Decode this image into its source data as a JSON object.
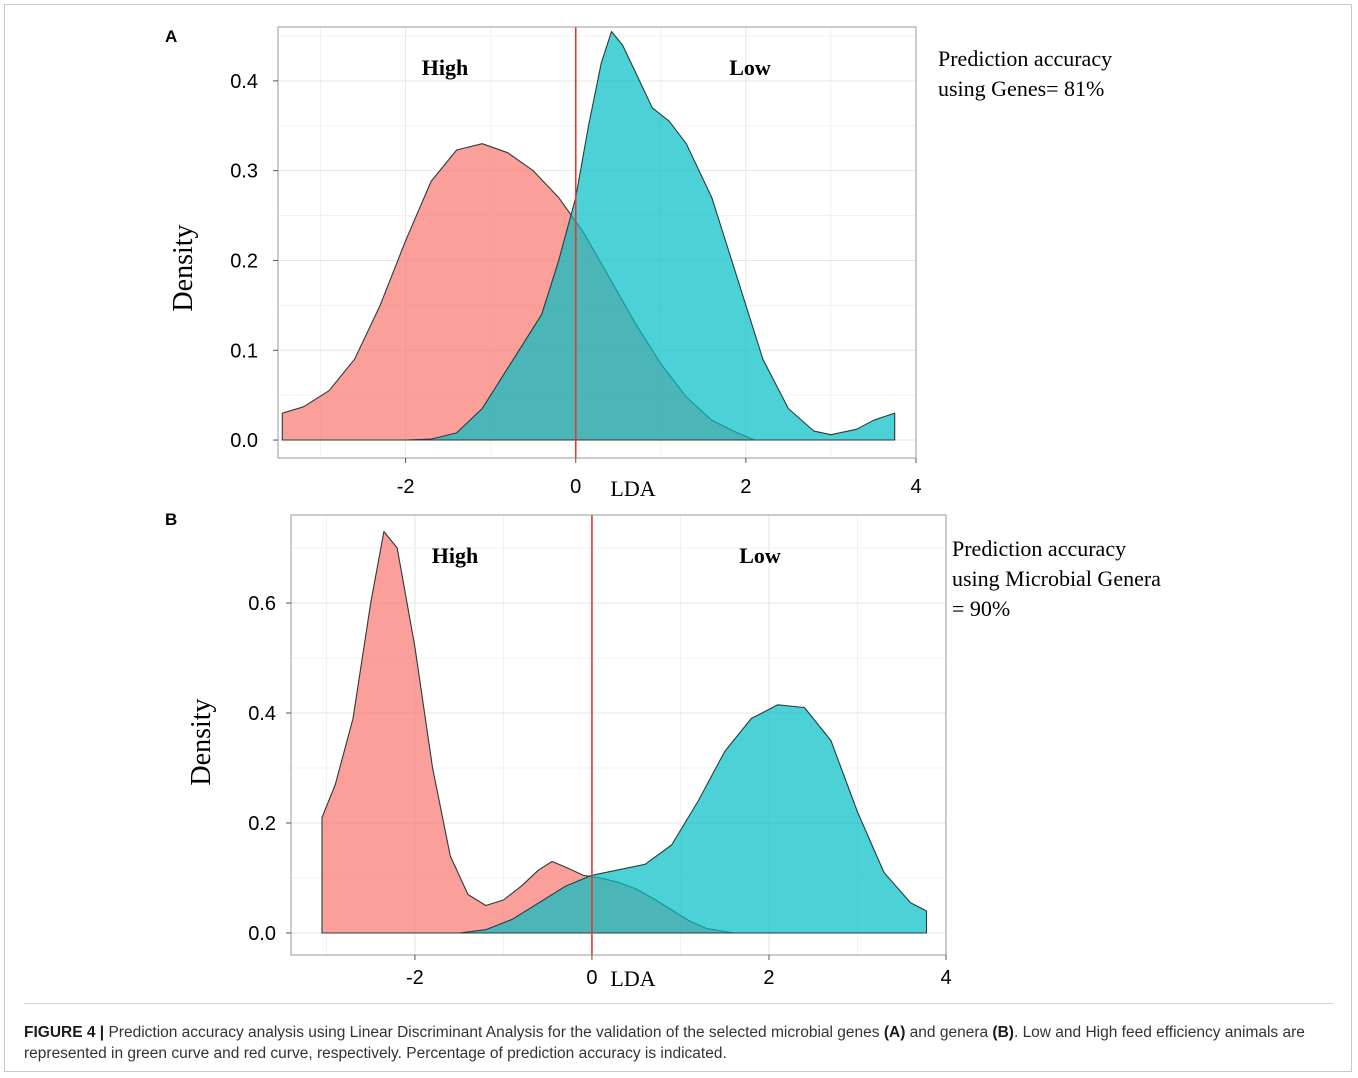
{
  "chart_data": [
    {
      "panel": "A",
      "type": "area",
      "ylabel": "Density",
      "xlabel": "LDA",
      "xlim": [
        -3.5,
        4.0
      ],
      "ylim": [
        -0.02,
        0.46
      ],
      "xticks": [
        -2,
        0,
        2,
        4
      ],
      "yticks": [
        0.0,
        0.1,
        0.2,
        0.3,
        0.4
      ],
      "xtick_labels": [
        "-2",
        "0",
        "2",
        "4"
      ],
      "ytick_labels": [
        "0.0",
        "0.1",
        "0.2",
        "0.3",
        "0.4"
      ],
      "grid": true,
      "vline_x": 0,
      "group_labels": {
        "left": "High",
        "right": "Low"
      },
      "annotation": [
        "Prediction accuracy",
        "using Genes= 81%"
      ],
      "series": [
        {
          "color": "#f8766d",
          "x": [
            -3.45,
            -3.2,
            -2.9,
            -2.6,
            -2.3,
            -2.0,
            -1.7,
            -1.4,
            -1.1,
            -0.8,
            -0.5,
            -0.2,
            0.1,
            0.4,
            0.7,
            1.0,
            1.3,
            1.6,
            1.9,
            2.1
          ],
          "y": [
            0.03,
            0.037,
            0.055,
            0.09,
            0.15,
            0.222,
            0.288,
            0.323,
            0.33,
            0.32,
            0.3,
            0.27,
            0.23,
            0.18,
            0.13,
            0.085,
            0.048,
            0.022,
            0.008,
            0.0
          ]
        },
        {
          "color": "#00bfc4",
          "x": [
            -2.0,
            -1.7,
            -1.4,
            -1.1,
            -0.8,
            -0.6,
            -0.4,
            -0.2,
            0.0,
            0.15,
            0.3,
            0.42,
            0.55,
            0.7,
            0.9,
            1.1,
            1.3,
            1.6,
            1.9,
            2.2,
            2.5,
            2.8,
            3.0,
            3.3,
            3.5,
            3.75,
            3.75
          ],
          "y": [
            0.0,
            0.001,
            0.008,
            0.035,
            0.08,
            0.11,
            0.14,
            0.2,
            0.27,
            0.35,
            0.42,
            0.455,
            0.44,
            0.41,
            0.37,
            0.355,
            0.33,
            0.27,
            0.18,
            0.09,
            0.035,
            0.01,
            0.006,
            0.012,
            0.022,
            0.03,
            0.0
          ]
        }
      ]
    },
    {
      "panel": "B",
      "type": "area",
      "ylabel": "Density",
      "xlabel": "LDA",
      "xlim": [
        -3.4,
        4.0
      ],
      "ylim": [
        -0.04,
        0.76
      ],
      "xticks": [
        -2,
        0,
        2,
        4
      ],
      "yticks": [
        0.0,
        0.2,
        0.4,
        0.6
      ],
      "xtick_labels": [
        "-2",
        "0",
        "2",
        "4"
      ],
      "ytick_labels": [
        "0.0",
        "0.2",
        "0.4",
        "0.6"
      ],
      "grid": true,
      "vline_x": 0,
      "group_labels": {
        "left": "High",
        "right": "Low"
      },
      "annotation": [
        "Prediction accuracy",
        "using Microbial Genera",
        "= 90%"
      ],
      "series": [
        {
          "color": "#f8766d",
          "x": [
            -3.05,
            -3.05,
            -2.9,
            -2.7,
            -2.5,
            -2.35,
            -2.2,
            -2.0,
            -1.8,
            -1.6,
            -1.4,
            -1.2,
            -1.0,
            -0.8,
            -0.6,
            -0.45,
            -0.3,
            -0.1,
            0.1,
            0.3,
            0.5,
            0.7,
            0.9,
            1.1,
            1.3,
            1.6
          ],
          "y": [
            0.0,
            0.21,
            0.27,
            0.39,
            0.6,
            0.73,
            0.7,
            0.52,
            0.3,
            0.14,
            0.07,
            0.05,
            0.06,
            0.085,
            0.115,
            0.13,
            0.12,
            0.105,
            0.1,
            0.092,
            0.08,
            0.062,
            0.042,
            0.022,
            0.008,
            0.0
          ]
        },
        {
          "color": "#00bfc4",
          "x": [
            -1.5,
            -1.2,
            -0.9,
            -0.6,
            -0.3,
            0.0,
            0.3,
            0.6,
            0.9,
            1.2,
            1.5,
            1.8,
            2.1,
            2.4,
            2.7,
            3.0,
            3.3,
            3.6,
            3.78,
            3.78
          ],
          "y": [
            0.0,
            0.006,
            0.025,
            0.055,
            0.085,
            0.105,
            0.115,
            0.125,
            0.16,
            0.24,
            0.33,
            0.39,
            0.415,
            0.41,
            0.35,
            0.22,
            0.11,
            0.055,
            0.04,
            0.0
          ]
        }
      ]
    }
  ],
  "caption": {
    "label": "FIGURE 4 |",
    "text_1": " Prediction accuracy analysis using Linear Discriminant Analysis for the validation of the selected microbial genes ",
    "ref_a": "(A)",
    "text_2": " and genera ",
    "ref_b": "(B)",
    "text_3": ". Low and High feed efficiency animals are represented in green curve and red curve, respectively. Percentage of prediction accuracy is indicated."
  }
}
